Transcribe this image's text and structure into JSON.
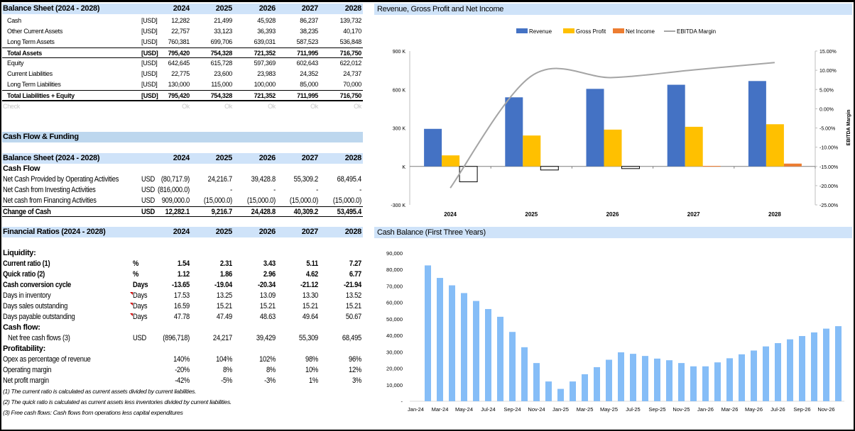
{
  "years": [
    "2024",
    "2025",
    "2026",
    "2027",
    "2028"
  ],
  "balance_sheet": {
    "title": "Balance Sheet (2024 - 2028)",
    "rows": [
      {
        "label": "Cash",
        "unit": "[USD]",
        "values": [
          "12,282",
          "21,499",
          "45,928",
          "86,237",
          "139,732"
        ]
      },
      {
        "label": "Other Current Assets",
        "unit": "[USD]",
        "values": [
          "22,757",
          "33,123",
          "36,393",
          "38,235",
          "40,170"
        ]
      },
      {
        "label": "Long Term Assets",
        "unit": "[USD]",
        "values": [
          "760,381",
          "699,706",
          "639,031",
          "587,523",
          "536,848"
        ]
      },
      {
        "label": "Total Assets",
        "unit": "[USD]",
        "values": [
          "795,420",
          "754,328",
          "721,352",
          "711,995",
          "716,750"
        ],
        "total": true
      },
      {
        "label": "Equity",
        "unit": "[USD]",
        "values": [
          "642,645",
          "615,728",
          "597,369",
          "602,643",
          "622,012"
        ]
      },
      {
        "label": "Current Liabilities",
        "unit": "[USD]",
        "values": [
          "22,775",
          "23,600",
          "23,983",
          "24,352",
          "24,737"
        ]
      },
      {
        "label": "Long Term Liabilities",
        "unit": "[USD]",
        "values": [
          "130,000",
          "115,000",
          "100,000",
          "85,000",
          "70,000"
        ]
      },
      {
        "label": "Total Liabilities + Equity",
        "unit": "[USD]",
        "values": [
          "795,420",
          "754,328",
          "721,352",
          "711,995",
          "716,750"
        ],
        "total": true
      },
      {
        "label": "Check",
        "unit": "",
        "values": [
          "Ok",
          "Ok",
          "Ok",
          "Ok",
          "Ok"
        ],
        "check": true
      }
    ]
  },
  "cash_flow_funding": {
    "section_title": "Cash Flow & Funding",
    "table_title": "Balance Sheet (2024 - 2028)",
    "subheading": "Cash Flow",
    "rows": [
      {
        "label": "Net Cash Provided by Operating Activities",
        "unit": "USD",
        "values": [
          "(80,717.9)",
          "24,216.7",
          "39,428.8",
          "55,309.2",
          "68,495.4"
        ]
      },
      {
        "label": "Net Cash from Investing Activities",
        "unit": "USD",
        "values": [
          "(816,000.0)",
          "-",
          "-",
          "-",
          "-"
        ]
      },
      {
        "label": "Net cash from Financing Activities",
        "unit": "USD",
        "values": [
          "909,000.0",
          "(15,000.0)",
          "(15,000.0)",
          "(15,000.0)",
          "(15,000.0)"
        ]
      },
      {
        "label": "Change of Cash",
        "unit": "USD",
        "values": [
          "12,282.1",
          "9,216.7",
          "24,428.8",
          "40,309.2",
          "53,495.4"
        ],
        "total": true
      }
    ]
  },
  "ratios": {
    "title": "Financial Ratios (2024 - 2028)",
    "groups": [
      {
        "heading": "Liquidity:",
        "rows": [
          {
            "label": "Current ratio (1)",
            "unit": "%",
            "values": [
              "1.54",
              "2.31",
              "3.43",
              "5.11",
              "7.27"
            ],
            "bold": true
          },
          {
            "label": "Quick ratio (2)",
            "unit": "%",
            "values": [
              "1.12",
              "1.86",
              "2.96",
              "4.62",
              "6.77"
            ],
            "bold": true
          },
          {
            "label": "Cash conversion cycle",
            "unit": "Days",
            "values": [
              "-13.65",
              "-19.04",
              "-20.34",
              "-21.12",
              "-21.94"
            ],
            "bold": true
          },
          {
            "label": "Days in inventory",
            "unit": "Days",
            "values": [
              "17.53",
              "13.25",
              "13.09",
              "13.30",
              "13.52"
            ],
            "flag": true
          },
          {
            "label": "Days sales outstanding",
            "unit": "Days",
            "values": [
              "16.59",
              "15.21",
              "15.21",
              "15.21",
              "15.21"
            ],
            "flag": true
          },
          {
            "label": "Days payable outstanding",
            "unit": "Days",
            "values": [
              "47.78",
              "47.49",
              "48.63",
              "49.64",
              "50.67"
            ],
            "flag": true
          }
        ]
      },
      {
        "heading": "Cash flow:",
        "rows": [
          {
            "label": "Net free cash flows (3)",
            "unit": "USD",
            "values": [
              "(896,718)",
              "24,217",
              "39,429",
              "55,309",
              "68,495"
            ],
            "indent": true
          }
        ]
      },
      {
        "heading": "Profitability:",
        "rows": [
          {
            "label": "Opex as percentage of revenue",
            "unit": "",
            "values": [
              "140%",
              "104%",
              "102%",
              "98%",
              "96%"
            ]
          },
          {
            "label": "Operating margin",
            "unit": "",
            "values": [
              "-20%",
              "8%",
              "8%",
              "10%",
              "12%"
            ]
          },
          {
            "label": "Net profit margin",
            "unit": "",
            "values": [
              "-42%",
              "-5%",
              "-3%",
              "1%",
              "3%"
            ]
          }
        ]
      }
    ],
    "notes": [
      "(1) The current ratio is calculated as current assets divided by current liabilities.",
      "(2) The quick ratio is calculated as current assets less inventories divided by current liabilities.",
      "(3)  Free cash flows:  Cash flows from operations less capital expenditures"
    ]
  },
  "chart_data": [
    {
      "type": "bar",
      "title": "Revenue, Gross Profit and Net Income",
      "categories": [
        "2024",
        "2025",
        "2026",
        "2027",
        "2028"
      ],
      "series": [
        {
          "name": "Revenue",
          "values": [
            293000,
            539000,
            605000,
            637000,
            666000
          ],
          "color": "#4472c4"
        },
        {
          "name": "Gross Profit",
          "values": [
            86000,
            241000,
            287000,
            309000,
            329000
          ],
          "color": "#ffc000"
        },
        {
          "name": "Net Income",
          "values": [
            -120000,
            -28000,
            -17000,
            4000,
            22000
          ],
          "color": "#ed7d31"
        },
        {
          "name": "EBITDA Margin",
          "type": "line",
          "axis": "right",
          "values": [
            -20.6,
            8.5,
            8.1,
            10.1,
            12.0
          ],
          "color": "#a5a5a5"
        }
      ],
      "ylim": [
        -300000,
        900000
      ],
      "yticks": [
        "900 K",
        "600 K",
        "300 K",
        "K",
        "-300 K"
      ],
      "y2lim": [
        -25,
        15
      ],
      "y2ticks": [
        "15.00%",
        "10.00%",
        "5.00%",
        "0.00%",
        "-5.00%",
        "-10.00%",
        "-15.00%",
        "-20.00%",
        "-25.00%"
      ],
      "y2label": "EBITDA Margin",
      "legend": "top"
    },
    {
      "type": "bar",
      "title": "Cash Balance (First Three Years)",
      "categories": [
        "Jan-24",
        "Feb-24",
        "Mar-24",
        "Apr-24",
        "May-24",
        "Jun-24",
        "Jul-24",
        "Aug-24",
        "Sep-24",
        "Oct-24",
        "Nov-24",
        "Dec-24",
        "Jan-25",
        "Feb-25",
        "Mar-25",
        "Apr-25",
        "May-25",
        "Jun-25",
        "Jul-25",
        "Aug-25",
        "Sep-25",
        "Oct-25",
        "Nov-25",
        "Dec-25",
        "Jan-26",
        "Feb-26",
        "Mar-26",
        "Apr-26",
        "May-26",
        "Jun-26",
        "Jul-26",
        "Aug-26",
        "Sep-26",
        "Oct-26",
        "Nov-26",
        "Dec-26"
      ],
      "values": [
        0,
        82500,
        74900,
        70400,
        65700,
        60900,
        56000,
        51300,
        42100,
        32800,
        23200,
        12000,
        7500,
        12000,
        16400,
        20700,
        25200,
        29700,
        28800,
        27500,
        25900,
        24900,
        23200,
        21200,
        21200,
        23600,
        26100,
        28500,
        30800,
        33300,
        35300,
        37600,
        39600,
        41800,
        44100,
        45600
      ],
      "ylim": [
        0,
        90000
      ],
      "yticks": [
        "90,000",
        "80,000",
        "70,000",
        "60,000",
        "50,000",
        "40,000",
        "30,000",
        "20,000",
        "10,000",
        "-"
      ],
      "color": "#85bdf7"
    }
  ]
}
